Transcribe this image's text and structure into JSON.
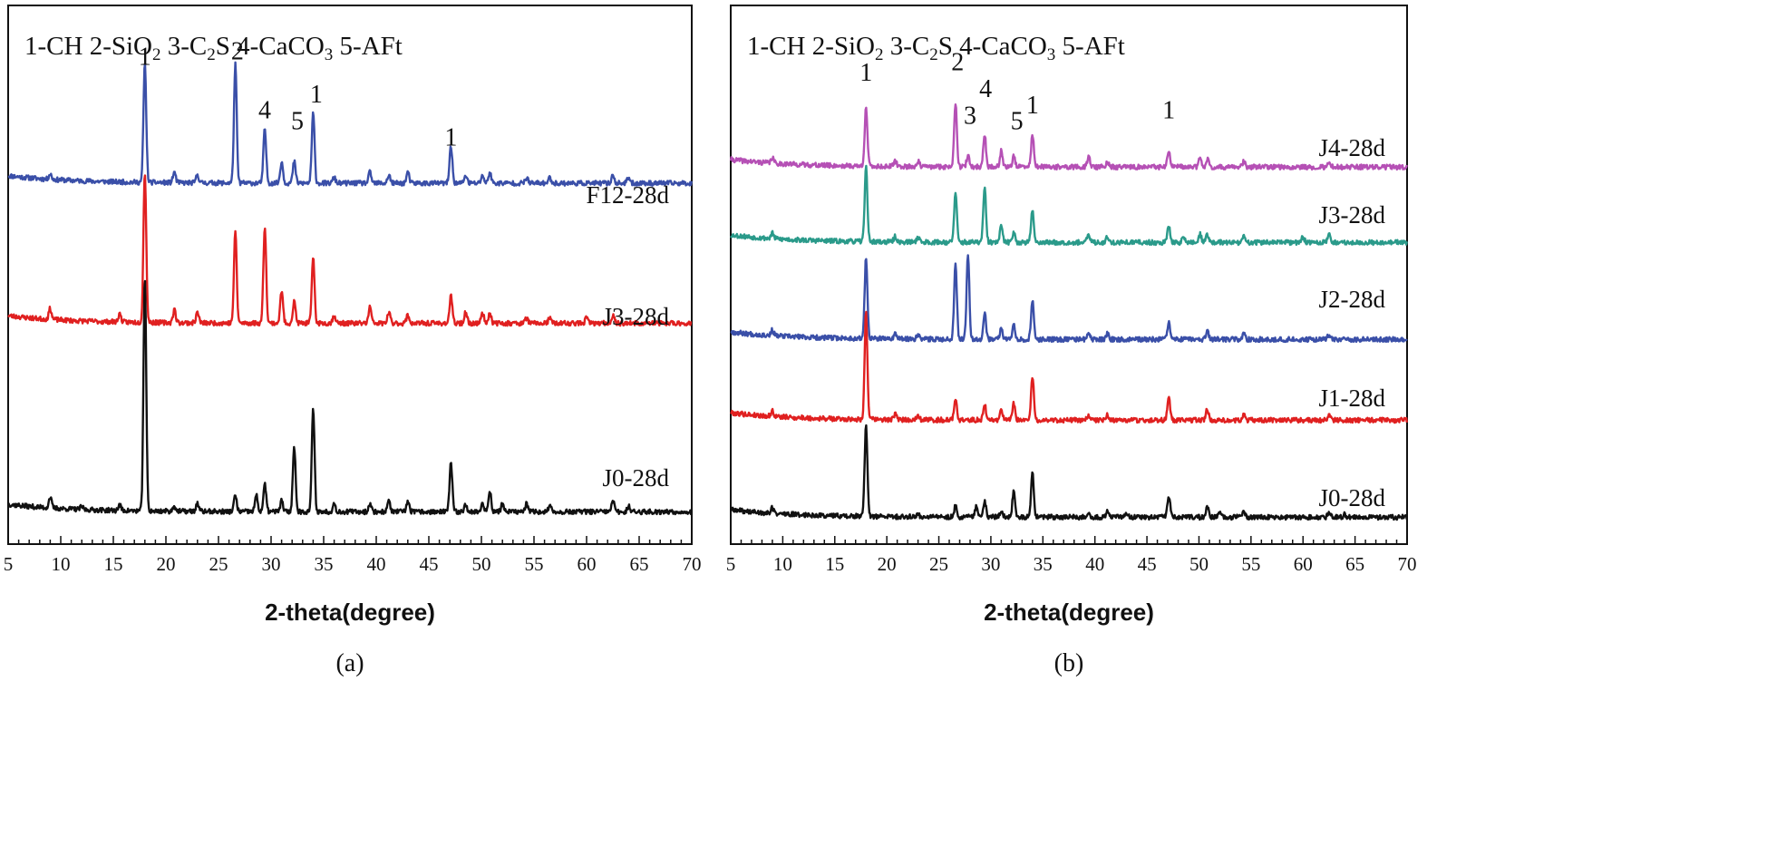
{
  "chart_data": [
    {
      "type": "line",
      "caption": "(a)",
      "legend": {
        "parts": [
          {
            "t": "1-CH 2-SiO"
          },
          {
            "t": "2",
            "sub": true
          },
          {
            "t": " 3-C"
          },
          {
            "t": "2",
            "sub": true
          },
          {
            "t": "S 4-CaCO"
          },
          {
            "t": "3",
            "sub": true
          },
          {
            "t": " 5-AFt"
          }
        ]
      },
      "xlabel": "2-theta(degree)",
      "xlim": [
        5,
        70
      ],
      "xticks": [
        "5",
        "10",
        "15",
        "20",
        "25",
        "30",
        "35",
        "40",
        "45",
        "50",
        "55",
        "60",
        "65",
        "70"
      ],
      "ylim": [
        0,
        100
      ],
      "series": [
        {
          "name": "F12-28d",
          "color": "#3a4fa8",
          "base": 67,
          "seed": 11,
          "peaks": [
            [
              9.0,
              1
            ],
            [
              18.0,
              22
            ],
            [
              20.8,
              2
            ],
            [
              23.0,
              1.5
            ],
            [
              26.6,
              22
            ],
            [
              29.4,
              10
            ],
            [
              31.0,
              4
            ],
            [
              32.2,
              4
            ],
            [
              34.0,
              13
            ],
            [
              36.0,
              1
            ],
            [
              39.4,
              2
            ],
            [
              41.2,
              1.5
            ],
            [
              43.0,
              2
            ],
            [
              47.1,
              7
            ],
            [
              48.5,
              1.5
            ],
            [
              50.1,
              1.5
            ],
            [
              50.8,
              2
            ],
            [
              54.3,
              1
            ],
            [
              56.5,
              1
            ],
            [
              62.5,
              1.5
            ],
            [
              64.0,
              1
            ]
          ]
        },
        {
          "name": "J3-28d",
          "color": "#e02020",
          "base": 41,
          "seed": 23,
          "peaks": [
            [
              9.0,
              2
            ],
            [
              15.6,
              1.5
            ],
            [
              18.0,
              28
            ],
            [
              20.8,
              2.5
            ],
            [
              23.0,
              2
            ],
            [
              26.6,
              17
            ],
            [
              29.4,
              18
            ],
            [
              31.0,
              6
            ],
            [
              32.2,
              4
            ],
            [
              34.0,
              12
            ],
            [
              36.0,
              1.5
            ],
            [
              39.4,
              3
            ],
            [
              41.2,
              2
            ],
            [
              43.0,
              1.5
            ],
            [
              47.1,
              5
            ],
            [
              48.5,
              2
            ],
            [
              50.1,
              2
            ],
            [
              50.8,
              2
            ],
            [
              54.3,
              1
            ],
            [
              56.5,
              1
            ],
            [
              60.0,
              1
            ],
            [
              62.5,
              1.5
            ]
          ]
        },
        {
          "name": "J0-28d",
          "color": "#111111",
          "base": 6,
          "seed": 37,
          "peaks": [
            [
              9.0,
              2
            ],
            [
              12.0,
              0.5
            ],
            [
              15.6,
              1
            ],
            [
              18.0,
              43
            ],
            [
              20.8,
              1
            ],
            [
              23.0,
              1.5
            ],
            [
              26.6,
              3
            ],
            [
              28.6,
              3
            ],
            [
              29.4,
              5
            ],
            [
              31.0,
              2
            ],
            [
              32.2,
              12
            ],
            [
              34.0,
              19
            ],
            [
              36.0,
              1.5
            ],
            [
              39.4,
              1.5
            ],
            [
              41.2,
              2
            ],
            [
              43.0,
              2
            ],
            [
              47.1,
              9
            ],
            [
              48.5,
              1.5
            ],
            [
              50.1,
              1.5
            ],
            [
              50.8,
              4
            ],
            [
              52.0,
              1.5
            ],
            [
              54.3,
              1.5
            ],
            [
              56.5,
              1
            ],
            [
              62.5,
              2
            ],
            [
              64.0,
              1
            ]
          ]
        }
      ],
      "annotations": [
        {
          "text": "1",
          "x": 18.0,
          "y": 89
        },
        {
          "text": "2",
          "x": 26.8,
          "y": 90
        },
        {
          "text": "4",
          "x": 29.4,
          "y": 79
        },
        {
          "text": "5",
          "x": 32.5,
          "y": 77
        },
        {
          "text": "1",
          "x": 34.3,
          "y": 82
        },
        {
          "text": "1",
          "x": 47.1,
          "y": 74
        }
      ]
    },
    {
      "type": "line",
      "caption": "(b)",
      "legend": {
        "parts": [
          {
            "t": "1-CH 2-SiO"
          },
          {
            "t": "2",
            "sub": true
          },
          {
            "t": " 3-C"
          },
          {
            "t": "2",
            "sub": true
          },
          {
            "t": "S 4-CaCO"
          },
          {
            "t": "3",
            "sub": true
          },
          {
            "t": " 5-AFt"
          }
        ]
      },
      "xlabel": "2-theta(degree)",
      "xlim": [
        5,
        70
      ],
      "xticks": [
        "5",
        "10",
        "15",
        "20",
        "25",
        "30",
        "35",
        "40",
        "45",
        "50",
        "55",
        "60",
        "65",
        "70"
      ],
      "ylim": [
        0,
        100
      ],
      "series": [
        {
          "name": "J4-28d",
          "color": "#b550b5",
          "base": 70,
          "seed": 41,
          "peaks": [
            [
              9.0,
              1
            ],
            [
              18.0,
              11
            ],
            [
              20.8,
              1
            ],
            [
              23.0,
              1
            ],
            [
              26.6,
              12
            ],
            [
              27.8,
              2
            ],
            [
              29.4,
              6
            ],
            [
              31.0,
              3
            ],
            [
              32.2,
              2
            ],
            [
              34.0,
              6
            ],
            [
              39.4,
              2
            ],
            [
              41.2,
              1
            ],
            [
              47.1,
              3
            ],
            [
              50.1,
              2
            ],
            [
              50.8,
              1.5
            ],
            [
              54.3,
              1
            ],
            [
              62.5,
              1
            ]
          ]
        },
        {
          "name": "J3-28d",
          "color": "#2a9a8a",
          "base": 56,
          "seed": 53,
          "peaks": [
            [
              9.0,
              1
            ],
            [
              18.0,
              14
            ],
            [
              20.8,
              1
            ],
            [
              23.0,
              1
            ],
            [
              26.6,
              9
            ],
            [
              29.4,
              10
            ],
            [
              31.0,
              3
            ],
            [
              32.2,
              2
            ],
            [
              34.0,
              6
            ],
            [
              39.4,
              1.5
            ],
            [
              41.2,
              1
            ],
            [
              47.1,
              3
            ],
            [
              48.5,
              1
            ],
            [
              50.1,
              1.5
            ],
            [
              50.8,
              1.5
            ],
            [
              54.3,
              1
            ],
            [
              60.0,
              1
            ],
            [
              62.5,
              1.5
            ]
          ]
        },
        {
          "name": "J2-28d",
          "color": "#3a4fa8",
          "base": 38,
          "seed": 67,
          "peaks": [
            [
              9.0,
              1
            ],
            [
              18.0,
              15
            ],
            [
              20.8,
              1
            ],
            [
              23.0,
              1
            ],
            [
              26.6,
              14
            ],
            [
              27.8,
              16
            ],
            [
              29.4,
              5
            ],
            [
              31.0,
              2
            ],
            [
              32.2,
              3
            ],
            [
              34.0,
              7
            ],
            [
              39.4,
              1
            ],
            [
              41.2,
              1
            ],
            [
              47.1,
              3
            ],
            [
              50.8,
              1.5
            ],
            [
              54.3,
              1
            ],
            [
              62.5,
              1
            ]
          ]
        },
        {
          "name": "J1-28d",
          "color": "#e02020",
          "base": 23,
          "seed": 79,
          "peaks": [
            [
              9.0,
              1
            ],
            [
              18.0,
              20
            ],
            [
              20.8,
              1
            ],
            [
              23.0,
              1
            ],
            [
              26.6,
              4
            ],
            [
              29.4,
              3
            ],
            [
              31.0,
              2
            ],
            [
              32.2,
              3
            ],
            [
              34.0,
              8
            ],
            [
              39.4,
              1
            ],
            [
              41.2,
              1
            ],
            [
              47.1,
              4
            ],
            [
              50.8,
              2
            ],
            [
              54.3,
              1
            ],
            [
              62.5,
              1
            ]
          ]
        },
        {
          "name": "J0-28d",
          "color": "#111111",
          "base": 5,
          "seed": 89,
          "peaks": [
            [
              9.0,
              1
            ],
            [
              18.0,
              17
            ],
            [
              23.0,
              0.5
            ],
            [
              26.6,
              2
            ],
            [
              28.6,
              2
            ],
            [
              29.4,
              3
            ],
            [
              31.0,
              1
            ],
            [
              32.2,
              5
            ],
            [
              34.0,
              8
            ],
            [
              39.4,
              1
            ],
            [
              41.2,
              1
            ],
            [
              43.0,
              1
            ],
            [
              47.1,
              4
            ],
            [
              50.8,
              2
            ],
            [
              52.0,
              1
            ],
            [
              54.3,
              1
            ],
            [
              62.5,
              1
            ],
            [
              64.0,
              0.5
            ]
          ]
        }
      ],
      "annotations": [
        {
          "text": "1",
          "x": 18.0,
          "y": 86
        },
        {
          "text": "2",
          "x": 26.8,
          "y": 88
        },
        {
          "text": "3",
          "x": 28.0,
          "y": 78
        },
        {
          "text": "4",
          "x": 29.5,
          "y": 83
        },
        {
          "text": "5",
          "x": 32.5,
          "y": 77
        },
        {
          "text": "1",
          "x": 34.0,
          "y": 80
        },
        {
          "text": "1",
          "x": 47.1,
          "y": 79
        }
      ]
    }
  ]
}
